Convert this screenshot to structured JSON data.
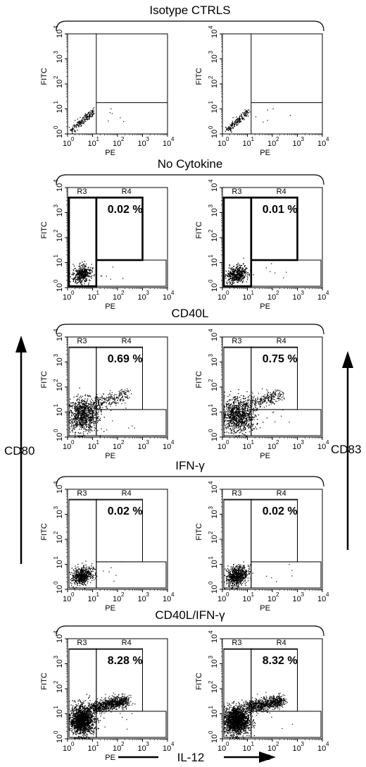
{
  "figure": {
    "y_arrow_left_label": "CD80",
    "y_arrow_right_label": "CD83",
    "x_arrow_label": "IL-12"
  },
  "axes": {
    "xlabel": "PE",
    "ylabel": "FITC",
    "tick_labels": [
      "10",
      "10",
      "10",
      "10",
      "10"
    ],
    "tick_exponents": [
      "0",
      "1",
      "2",
      "3",
      "4"
    ],
    "region_labels": {
      "r3": "R3",
      "r4": "R4"
    }
  },
  "chart_data": [
    {
      "type": "scatter",
      "title": "Isotype CTRLS",
      "gated": false,
      "xscale": "log",
      "yscale": "log",
      "xlim": [
        1,
        10000
      ],
      "ylim": [
        1,
        10000
      ],
      "panels": [
        {
          "r4_percent": "",
          "cluster": "diag",
          "tail": false,
          "spread": 0.6,
          "density": 180
        },
        {
          "r4_percent": "",
          "cluster": "diag",
          "tail": false,
          "spread": 0.6,
          "density": 160
        }
      ]
    },
    {
      "type": "scatter",
      "title": "No Cytokine",
      "gated": true,
      "xscale": "log",
      "yscale": "log",
      "xlim": [
        1,
        10000
      ],
      "ylim": [
        1,
        10000
      ],
      "panels": [
        {
          "r4_percent": "0.02 %",
          "cluster": "blob",
          "tail": false,
          "spread": 0.8,
          "density": 420
        },
        {
          "r4_percent": "0.01 %",
          "cluster": "blob",
          "tail": false,
          "spread": 0.9,
          "density": 480
        }
      ]
    },
    {
      "type": "scatter",
      "title": "CD40L",
      "gated": true,
      "xscale": "log",
      "yscale": "log",
      "xlim": [
        1,
        10000
      ],
      "ylim": [
        1,
        10000
      ],
      "panels": [
        {
          "r4_percent": "0.69 %",
          "cluster": "big",
          "tail": true,
          "spread": 1.1,
          "density": 900
        },
        {
          "r4_percent": "0.75 %",
          "cluster": "big",
          "tail": true,
          "spread": 1.2,
          "density": 1000
        }
      ]
    },
    {
      "type": "scatter",
      "title": "IFN-γ",
      "gated": true,
      "xscale": "log",
      "yscale": "log",
      "xlim": [
        1,
        10000
      ],
      "ylim": [
        1,
        10000
      ],
      "panels": [
        {
          "r4_percent": "0.02 %",
          "cluster": "blob",
          "tail": false,
          "spread": 0.9,
          "density": 550
        },
        {
          "r4_percent": "0.02 %",
          "cluster": "blob",
          "tail": false,
          "spread": 1.0,
          "density": 650
        }
      ]
    },
    {
      "type": "scatter",
      "title": "CD40L/IFN-γ",
      "gated": true,
      "xscale": "log",
      "yscale": "log",
      "xlim": [
        1,
        10000
      ],
      "ylim": [
        1,
        10000
      ],
      "panels": [
        {
          "r4_percent": "8.28 %",
          "cluster": "band",
          "tail": true,
          "spread": 1.2,
          "density": 1600
        },
        {
          "r4_percent": "8.32 %",
          "cluster": "band",
          "tail": true,
          "spread": 1.3,
          "density": 1700
        }
      ]
    }
  ]
}
